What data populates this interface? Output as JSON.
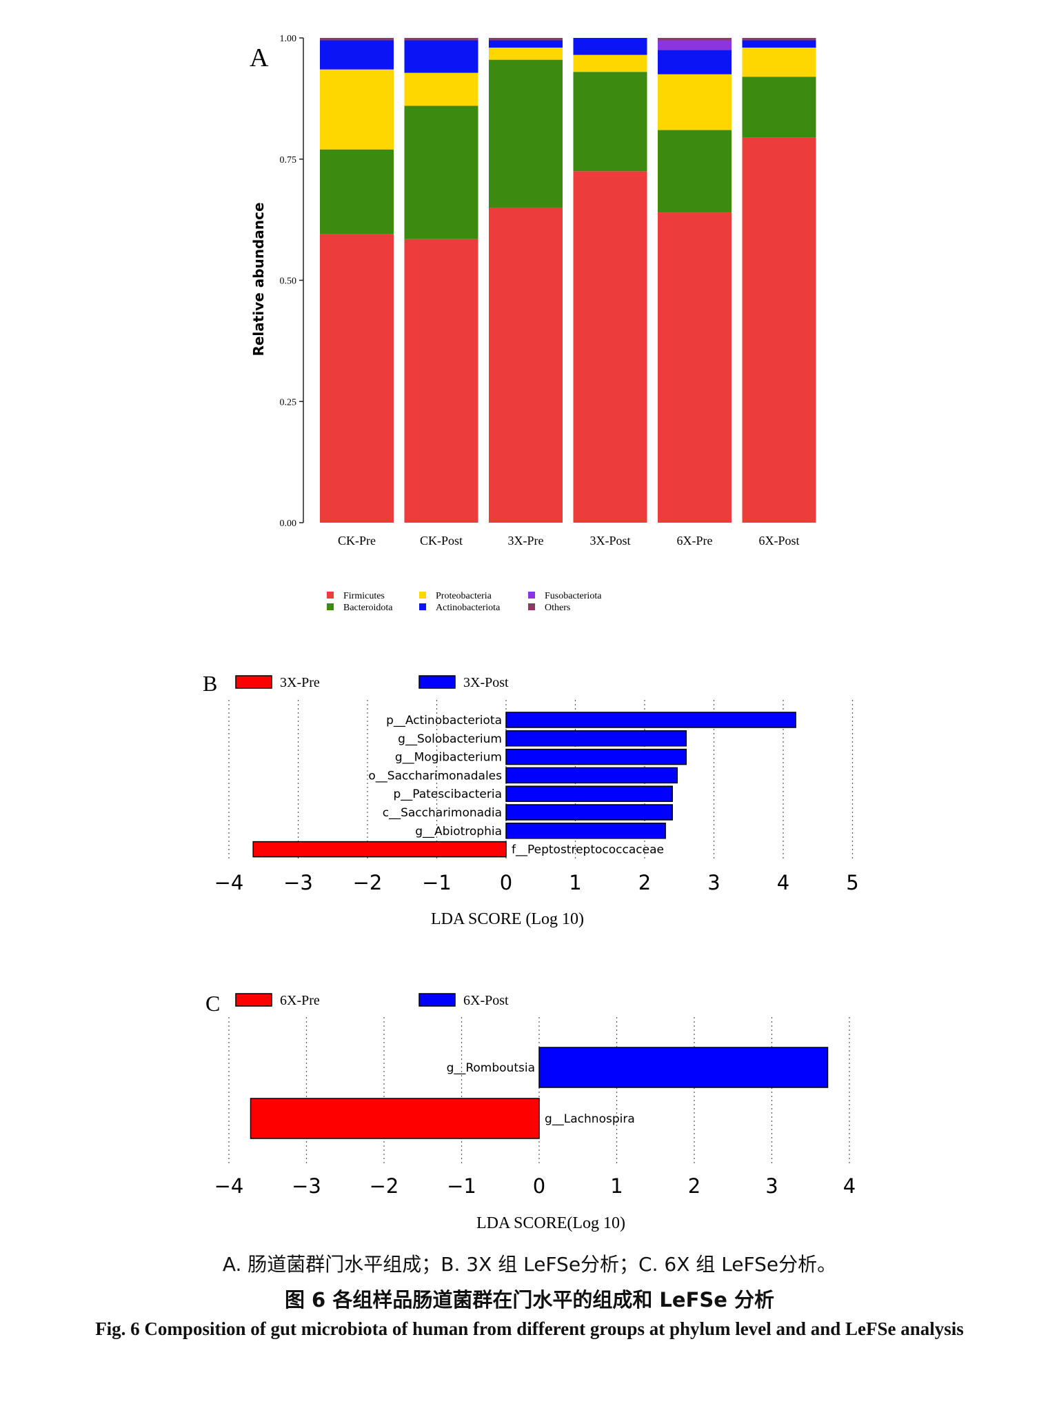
{
  "colors": {
    "Firmicutes": "#ec3c3c",
    "Bacteroidota": "#3d8a10",
    "Proteobacteria": "#ffd700",
    "Actinobacteriota": "#0a14f5",
    "Fusobacteriota": "#8a35e0",
    "Others": "#8b3a62",
    "pre_bar": "#ff0000",
    "post_bar": "#0000ff"
  },
  "chart_data": [
    {
      "panel": "A",
      "type": "bar",
      "stacked": true,
      "ylabel": "Relative abundance",
      "ylim": [
        0,
        1
      ],
      "yticks": [
        "0.00",
        "0.25",
        "0.50",
        "0.75",
        "1.00"
      ],
      "categories": [
        "CK-Pre",
        "CK-Post",
        "3X-Pre",
        "3X-Post",
        "6X-Pre",
        "6X-Post"
      ],
      "series": [
        {
          "name": "Firmicutes",
          "values": [
            0.595,
            0.585,
            0.65,
            0.725,
            0.64,
            0.795
          ]
        },
        {
          "name": "Bacteroidota",
          "values": [
            0.175,
            0.275,
            0.305,
            0.205,
            0.17,
            0.125
          ]
        },
        {
          "name": "Proteobacteria",
          "values": [
            0.165,
            0.068,
            0.025,
            0.035,
            0.115,
            0.06
          ]
        },
        {
          "name": "Actinobacteriota",
          "values": [
            0.06,
            0.067,
            0.015,
            0.035,
            0.05,
            0.015
          ]
        },
        {
          "name": "Fusobacteriota",
          "values": [
            0.0,
            0.0,
            0.0,
            0.0,
            0.02,
            0.0
          ]
        },
        {
          "name": "Others",
          "values": [
            0.005,
            0.005,
            0.005,
            0.0,
            0.005,
            0.005
          ]
        }
      ],
      "legend": [
        "Firmicutes",
        "Bacteroidota",
        "Proteobacteria",
        "Actinobacteriota",
        "Fusobacteriota",
        "Others"
      ]
    },
    {
      "panel": "B",
      "type": "bar",
      "orientation": "horizontal",
      "xlabel": "LDA SCORE (Log 10)",
      "xlim": [
        -4,
        5
      ],
      "xticks": [
        "−4",
        "−3",
        "−2",
        "−1",
        "0",
        "1",
        "2",
        "3",
        "4",
        "5"
      ],
      "legend": [
        "3X-Pre",
        "3X-Post"
      ],
      "features": [
        {
          "name": "p__Actinobacteriota",
          "value": 4.18,
          "group": "3X-Post"
        },
        {
          "name": "g__Solobacterium",
          "value": 2.6,
          "group": "3X-Post"
        },
        {
          "name": "g__Mogibacterium",
          "value": 2.6,
          "group": "3X-Post"
        },
        {
          "name": "o__Saccharimonadales",
          "value": 2.47,
          "group": "3X-Post"
        },
        {
          "name": "p__Patescibacteria",
          "value": 2.4,
          "group": "3X-Post"
        },
        {
          "name": "c__Saccharimonadia",
          "value": 2.4,
          "group": "3X-Post"
        },
        {
          "name": "g__Abiotrophia",
          "value": 2.3,
          "group": "3X-Post"
        },
        {
          "name": "f__Peptostreptococcaceae",
          "value": -3.65,
          "group": "3X-Pre"
        }
      ]
    },
    {
      "panel": "C",
      "type": "bar",
      "orientation": "horizontal",
      "xlabel": "LDA SCORE(Log 10)",
      "xlim": [
        -4,
        4
      ],
      "xticks": [
        "−4",
        "−3",
        "−2",
        "−1",
        "0",
        "1",
        "2",
        "3",
        "4"
      ],
      "legend": [
        "6X-Pre",
        "6X-Post"
      ],
      "features": [
        {
          "name": "g__Romboutsia",
          "value": 3.72,
          "group": "6X-Post"
        },
        {
          "name": "g__Lachnospira",
          "value": -3.72,
          "group": "6X-Pre"
        }
      ]
    }
  ],
  "panel_labels": {
    "a": "A",
    "b": "B",
    "c": "C"
  },
  "caption": {
    "sub": "A. 肠道菌群门水平组成；B. 3X 组 LeFSe分析；C. 6X 组 LeFSe分析。",
    "title_zh": "图 6   各组样品肠道菌群在门水平的组成和 LeFSe 分析",
    "title_en": "Fig. 6    Composition of gut microbiota of human from different groups at phylum level and and LeFSe analysis"
  }
}
